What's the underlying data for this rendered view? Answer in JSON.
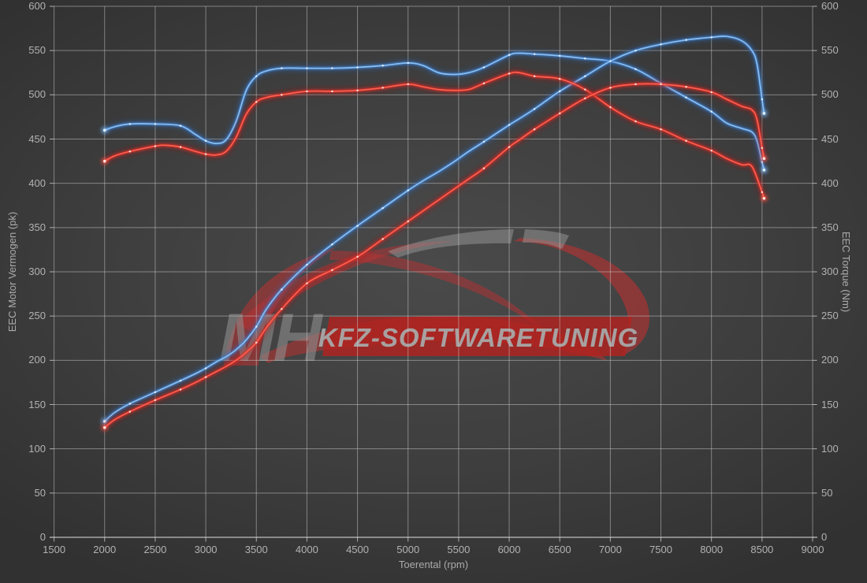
{
  "page": {
    "background": "#3a3a3a"
  },
  "watermark": {
    "brand_initials": "MH",
    "brand_text": "KFZ-SOFTWARETUNING",
    "banner_red": "#b1221f",
    "body_red": "#c52f30",
    "gray": "#8d8d8d"
  },
  "style": {
    "grid_color": "rgba(205,205,205,0.5)",
    "axis_line_color": "rgba(215,215,215,0.75)",
    "tick_text_color": "#b2b2b2",
    "blue": {
      "glow": "#2a66b5",
      "mid": "#3c82d4",
      "core": "#8ec2f2",
      "dot": "#e8f4ff"
    },
    "red": {
      "glow": "#b51414",
      "mid": "#dc2a20",
      "core": "#ff6252",
      "dot": "#ffe8e0"
    }
  },
  "chart_data": {
    "type": "line",
    "title": "",
    "xlabel": "Toerental (rpm)",
    "ylabel_left": "EEC Motor Vermogen (pk)",
    "ylabel_right": "EEC Torque (Nm)",
    "grid": true,
    "legend": "none",
    "x_axis": {
      "min": 1500,
      "max": 9000,
      "tick_step": 500,
      "ticks": [
        1500,
        2000,
        2500,
        3000,
        3500,
        4000,
        4500,
        5000,
        5500,
        6000,
        6500,
        7000,
        7500,
        8000,
        8500,
        9000
      ]
    },
    "y_axis_left": {
      "min": 0,
      "max": 600,
      "tick_step": 50,
      "ticks": [
        0,
        50,
        100,
        150,
        200,
        250,
        300,
        350,
        400,
        450,
        500,
        550,
        600
      ]
    },
    "y_axis_right": {
      "min": 0,
      "max": 600,
      "tick_step": 50,
      "ticks": [
        0,
        50,
        100,
        150,
        200,
        250,
        300,
        350,
        400,
        450,
        500,
        550,
        600
      ]
    },
    "series": [
      {
        "id": "torque_blue",
        "color_key": "blue",
        "axis": "right",
        "unit": "Nm",
        "points": [
          [
            2000,
            460
          ],
          [
            2100,
            464
          ],
          [
            2250,
            467
          ],
          [
            2500,
            467
          ],
          [
            2750,
            465
          ],
          [
            2900,
            455
          ],
          [
            3000,
            448
          ],
          [
            3100,
            445
          ],
          [
            3200,
            449
          ],
          [
            3300,
            470
          ],
          [
            3400,
            505
          ],
          [
            3500,
            521
          ],
          [
            3600,
            527
          ],
          [
            3750,
            530
          ],
          [
            4000,
            530
          ],
          [
            4250,
            530
          ],
          [
            4500,
            531
          ],
          [
            4750,
            533
          ],
          [
            5000,
            536
          ],
          [
            5150,
            533
          ],
          [
            5300,
            525
          ],
          [
            5450,
            523
          ],
          [
            5600,
            525
          ],
          [
            5750,
            531
          ],
          [
            6000,
            545
          ],
          [
            6100,
            547
          ],
          [
            6250,
            546
          ],
          [
            6500,
            544
          ],
          [
            6750,
            541
          ],
          [
            7000,
            538
          ],
          [
            7250,
            529
          ],
          [
            7500,
            513
          ],
          [
            7750,
            497
          ],
          [
            8000,
            481
          ],
          [
            8150,
            468
          ],
          [
            8300,
            462
          ],
          [
            8400,
            458
          ],
          [
            8450,
            448
          ],
          [
            8500,
            424
          ],
          [
            8520,
            415
          ]
        ]
      },
      {
        "id": "power_blue",
        "color_key": "blue",
        "axis": "left",
        "unit": "pk",
        "points": [
          [
            2000,
            131
          ],
          [
            2100,
            141
          ],
          [
            2250,
            151
          ],
          [
            2500,
            164
          ],
          [
            2750,
            177
          ],
          [
            2900,
            185
          ],
          [
            3000,
            191
          ],
          [
            3100,
            198
          ],
          [
            3200,
            204
          ],
          [
            3300,
            212
          ],
          [
            3400,
            223
          ],
          [
            3500,
            238
          ],
          [
            3600,
            258
          ],
          [
            3750,
            280
          ],
          [
            4000,
            308
          ],
          [
            4250,
            331
          ],
          [
            4500,
            352
          ],
          [
            4750,
            372
          ],
          [
            5000,
            392
          ],
          [
            5150,
            403
          ],
          [
            5300,
            413
          ],
          [
            5450,
            424
          ],
          [
            5600,
            436
          ],
          [
            5750,
            447
          ],
          [
            6000,
            466
          ],
          [
            6100,
            473
          ],
          [
            6250,
            484
          ],
          [
            6500,
            504
          ],
          [
            6750,
            521
          ],
          [
            7000,
            538
          ],
          [
            7250,
            550
          ],
          [
            7500,
            557
          ],
          [
            7750,
            562
          ],
          [
            8000,
            565
          ],
          [
            8150,
            566
          ],
          [
            8300,
            561
          ],
          [
            8400,
            550
          ],
          [
            8450,
            535
          ],
          [
            8500,
            495
          ],
          [
            8520,
            479
          ]
        ]
      },
      {
        "id": "torque_red",
        "color_key": "red",
        "axis": "right",
        "unit": "Nm",
        "points": [
          [
            2000,
            425
          ],
          [
            2100,
            431
          ],
          [
            2250,
            436
          ],
          [
            2500,
            442
          ],
          [
            2600,
            443
          ],
          [
            2750,
            441
          ],
          [
            2900,
            436
          ],
          [
            3000,
            433
          ],
          [
            3100,
            432
          ],
          [
            3200,
            436
          ],
          [
            3300,
            452
          ],
          [
            3400,
            478
          ],
          [
            3500,
            492
          ],
          [
            3600,
            497
          ],
          [
            3750,
            500
          ],
          [
            4000,
            504
          ],
          [
            4250,
            504
          ],
          [
            4500,
            505
          ],
          [
            4750,
            508
          ],
          [
            5000,
            512
          ],
          [
            5150,
            509
          ],
          [
            5300,
            506
          ],
          [
            5450,
            505
          ],
          [
            5600,
            506
          ],
          [
            5750,
            513
          ],
          [
            6000,
            524
          ],
          [
            6100,
            525
          ],
          [
            6250,
            521
          ],
          [
            6500,
            518
          ],
          [
            6750,
            506
          ],
          [
            7000,
            486
          ],
          [
            7250,
            470
          ],
          [
            7500,
            461
          ],
          [
            7750,
            448
          ],
          [
            8000,
            437
          ],
          [
            8150,
            428
          ],
          [
            8300,
            421
          ],
          [
            8400,
            419
          ],
          [
            8500,
            390
          ],
          [
            8520,
            383
          ]
        ]
      },
      {
        "id": "power_red",
        "color_key": "red",
        "axis": "left",
        "unit": "pk",
        "points": [
          [
            2000,
            124
          ],
          [
            2100,
            133
          ],
          [
            2250,
            142
          ],
          [
            2500,
            155
          ],
          [
            2750,
            167
          ],
          [
            2900,
            175
          ],
          [
            3000,
            181
          ],
          [
            3100,
            187
          ],
          [
            3200,
            193
          ],
          [
            3300,
            200
          ],
          [
            3400,
            209
          ],
          [
            3500,
            220
          ],
          [
            3600,
            237
          ],
          [
            3750,
            258
          ],
          [
            4000,
            287
          ],
          [
            4250,
            302
          ],
          [
            4500,
            317
          ],
          [
            4750,
            337
          ],
          [
            5000,
            357
          ],
          [
            5150,
            369
          ],
          [
            5300,
            381
          ],
          [
            5450,
            393
          ],
          [
            5600,
            405
          ],
          [
            5750,
            417
          ],
          [
            6000,
            441
          ],
          [
            6100,
            449
          ],
          [
            6250,
            461
          ],
          [
            6500,
            479
          ],
          [
            6750,
            496
          ],
          [
            7000,
            508
          ],
          [
            7250,
            512
          ],
          [
            7500,
            512
          ],
          [
            7750,
            509
          ],
          [
            8000,
            503
          ],
          [
            8150,
            495
          ],
          [
            8300,
            487
          ],
          [
            8400,
            483
          ],
          [
            8450,
            472
          ],
          [
            8500,
            440
          ],
          [
            8520,
            428
          ]
        ]
      }
    ]
  }
}
